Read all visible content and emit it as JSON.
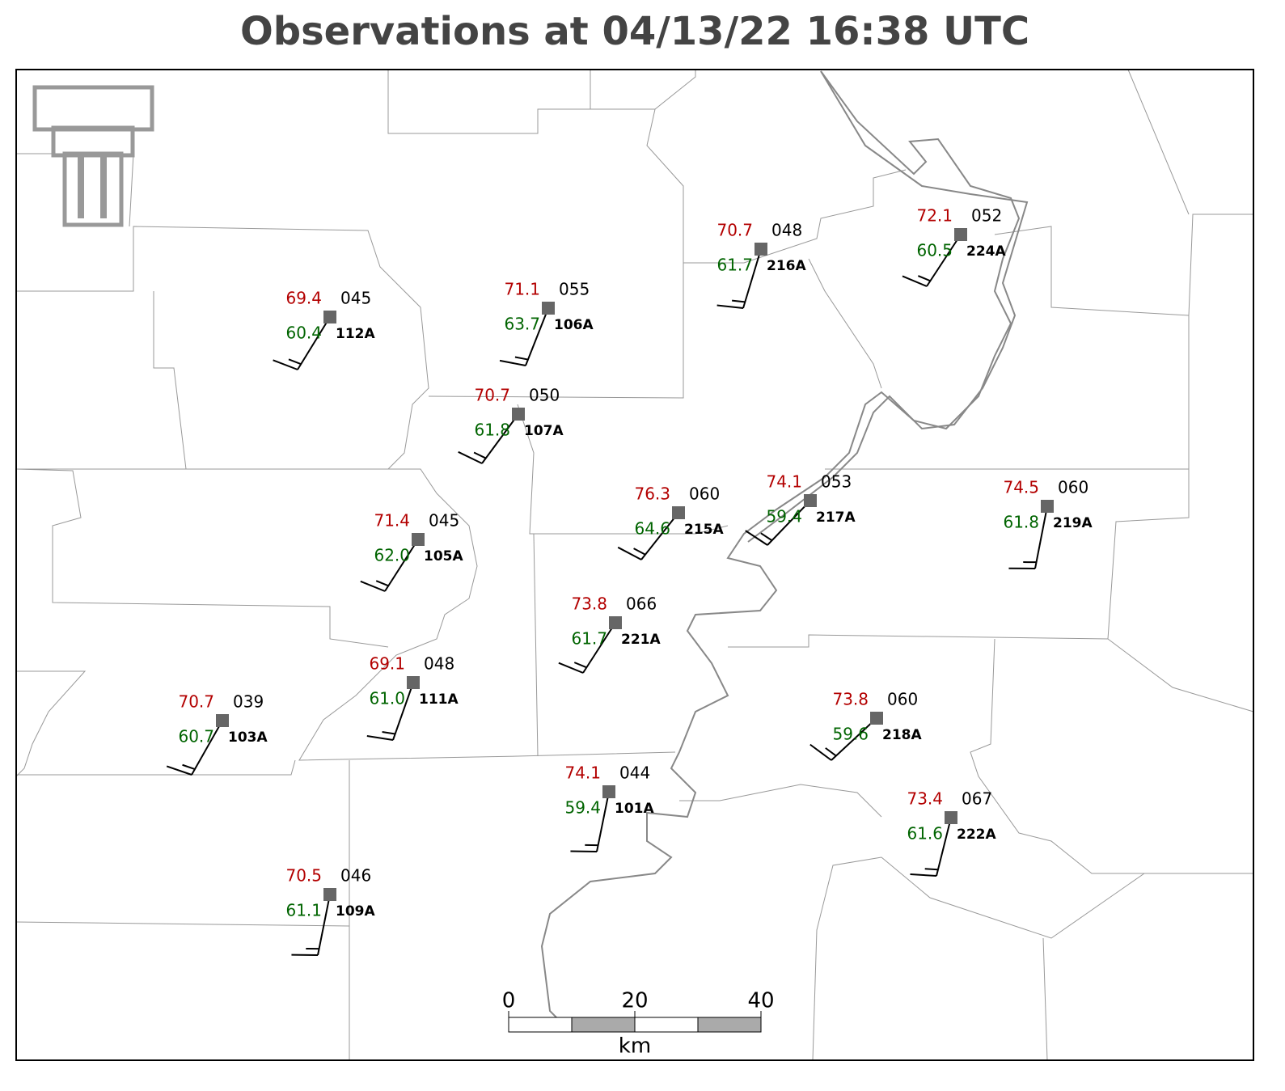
{
  "title": "Observations at 04/13/22 16:38 UTC",
  "stations": [
    {
      "id": "112A",
      "temperature": "69.4",
      "dewpoint": "60.4",
      "pressure": "045"
    },
    {
      "id": "106A",
      "temperature": "71.1",
      "dewpoint": "63.7",
      "pressure": "055"
    },
    {
      "id": "107A",
      "temperature": "70.7",
      "dewpoint": "61.8",
      "pressure": "050"
    },
    {
      "id": "216A",
      "temperature": "70.7",
      "dewpoint": "61.7",
      "pressure": "048"
    },
    {
      "id": "224A",
      "temperature": "72.1",
      "dewpoint": "60.5",
      "pressure": "052"
    },
    {
      "id": "215A",
      "temperature": "76.3",
      "dewpoint": "64.6",
      "pressure": "060"
    },
    {
      "id": "217A",
      "temperature": "74.1",
      "dewpoint": "59.4",
      "pressure": "053"
    },
    {
      "id": "219A",
      "temperature": "74.5",
      "dewpoint": "61.8",
      "pressure": "060"
    },
    {
      "id": "105A",
      "temperature": "71.4",
      "dewpoint": "62.0",
      "pressure": "045"
    },
    {
      "id": "221A",
      "temperature": "73.8",
      "dewpoint": "61.7",
      "pressure": "066"
    },
    {
      "id": "111A",
      "temperature": "69.1",
      "dewpoint": "61.0",
      "pressure": "048"
    },
    {
      "id": "103A",
      "temperature": "70.7",
      "dewpoint": "60.7",
      "pressure": "039"
    },
    {
      "id": "218A",
      "temperature": "73.8",
      "dewpoint": "59.6",
      "pressure": "060"
    },
    {
      "id": "101A",
      "temperature": "74.1",
      "dewpoint": "59.4",
      "pressure": "044"
    },
    {
      "id": "222A",
      "temperature": "73.4",
      "dewpoint": "61.6",
      "pressure": "067"
    },
    {
      "id": "109A",
      "temperature": "70.5",
      "dewpoint": "61.1",
      "pressure": "046"
    }
  ],
  "scale_bar": {
    "ticks": [
      0,
      20,
      40
    ],
    "unit": "km"
  }
}
